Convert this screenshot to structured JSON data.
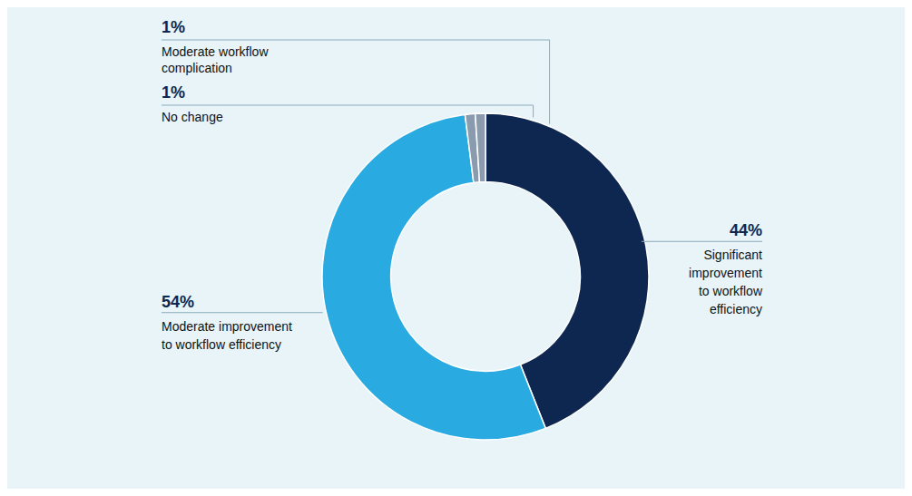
{
  "chart_data": {
    "type": "pie",
    "categories": [
      "Significant\nimprovement\nto workflow\nefficiency",
      "Moderate improvement\nto workflow efficiency",
      "Moderate workflow\ncomplication",
      "No change"
    ],
    "values": [
      44,
      54,
      1,
      1
    ],
    "value_labels": [
      "44%",
      "54%",
      "1%",
      "1%"
    ],
    "data_labels": true,
    "colors": [
      "#0d2750",
      "#29abe2",
      "#8a9bb0",
      "#8a9bb0"
    ]
  }
}
